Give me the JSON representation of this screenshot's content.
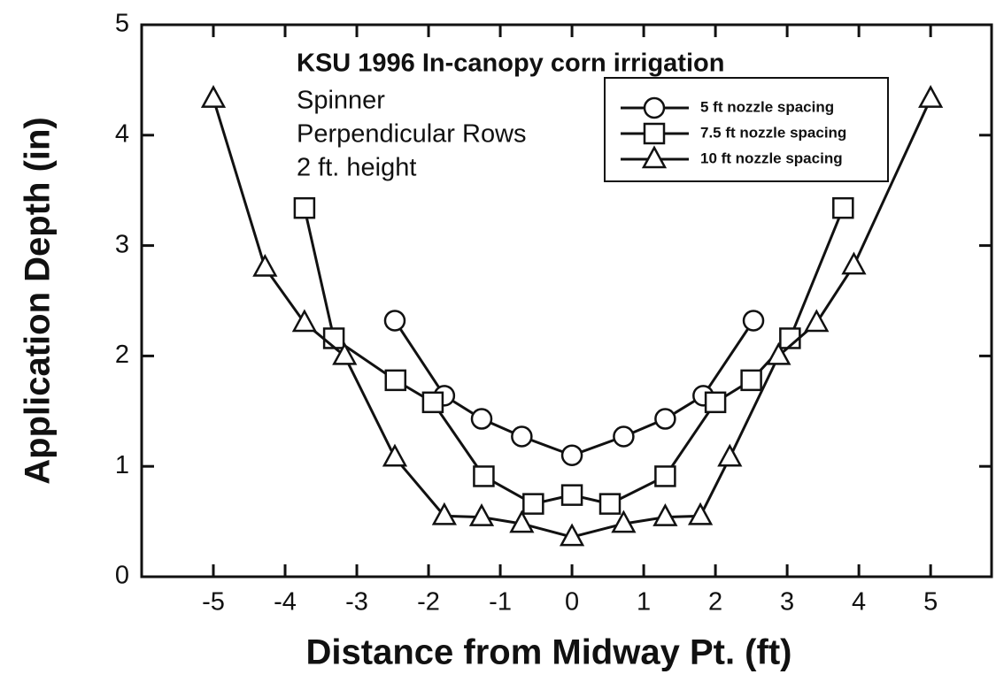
{
  "chart_data": {
    "type": "line",
    "title": "KSU 1996 In-canopy corn irrigation",
    "annotations": [
      "Spinner",
      "Perpendicular Rows",
      "2 ft. height"
    ],
    "x_label": "Distance from Midway Pt. (ft)",
    "y_label": "Application Depth (in)",
    "xlim": [
      -6,
      5.85
    ],
    "ylim": [
      0,
      5
    ],
    "xticks": [
      -5,
      -4,
      -3,
      -2,
      -1,
      0,
      1,
      2,
      3,
      4,
      5
    ],
    "yticks": [
      0,
      1,
      2,
      3,
      4,
      5
    ],
    "legend": "upper right",
    "series": [
      {
        "name": "5 ft nozzle spacing",
        "marker": "circle",
        "color": "#111111",
        "x": [
          -2.47,
          -1.78,
          -1.26,
          -0.7,
          0,
          0.72,
          1.3,
          1.83,
          2.53
        ],
        "values": [
          2.32,
          1.64,
          1.43,
          1.27,
          1.1,
          1.27,
          1.43,
          1.64,
          2.32
        ]
      },
      {
        "name": "7.5 ft nozzle spacing",
        "marker": "square",
        "color": "#111111",
        "x": [
          -3.73,
          -3.32,
          -2.46,
          -1.94,
          -1.23,
          -0.54,
          0,
          0.53,
          1.3,
          2.0,
          2.5,
          3.04,
          3.78
        ],
        "values": [
          3.34,
          2.16,
          1.78,
          1.58,
          0.91,
          0.66,
          0.74,
          0.66,
          0.91,
          1.58,
          1.78,
          2.16,
          3.34
        ]
      },
      {
        "name": "10 ft nozzle spacing",
        "marker": "triangle",
        "color": "#111111",
        "x": [
          -5,
          -4.28,
          -3.73,
          -3.17,
          -2.47,
          -1.78,
          -1.26,
          -0.7,
          0,
          0.72,
          1.3,
          1.79,
          2.2,
          2.88,
          3.41,
          3.93,
          5
        ],
        "values": [
          4.33,
          2.8,
          2.3,
          2.0,
          1.08,
          0.55,
          0.54,
          0.48,
          0.36,
          0.48,
          0.54,
          0.55,
          1.08,
          2.0,
          2.3,
          2.82,
          4.33
        ]
      }
    ]
  }
}
